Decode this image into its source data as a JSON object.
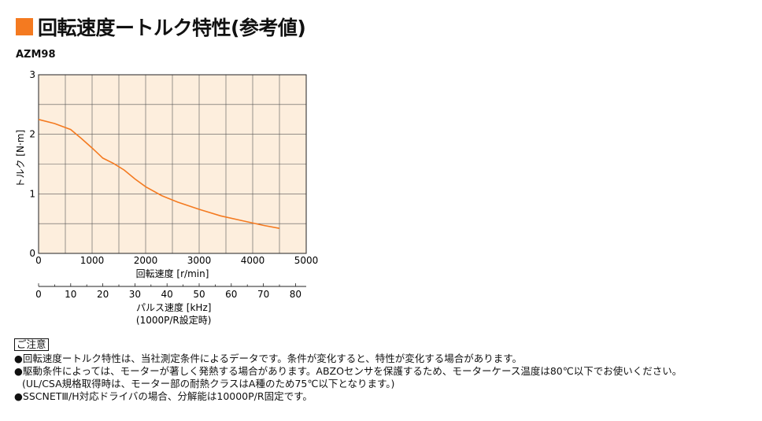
{
  "header": {
    "title": "回転速度ートルク特性(参考値)",
    "model": "AZM98",
    "accent_color": "#f47a20"
  },
  "chart_data": {
    "type": "line",
    "x": [
      0,
      300,
      600,
      800,
      1000,
      1200,
      1400,
      1600,
      1800,
      2000,
      2300,
      2600,
      3000,
      3400,
      3800,
      4200,
      4500
    ],
    "series": [
      {
        "values": [
          2.25,
          2.18,
          2.08,
          1.93,
          1.77,
          1.6,
          1.51,
          1.4,
          1.25,
          1.12,
          0.97,
          0.86,
          0.74,
          0.63,
          0.55,
          0.47,
          0.42
        ]
      }
    ],
    "xlim": [
      0,
      5000
    ],
    "ylim": [
      0,
      3
    ],
    "xticks": [
      "0",
      "1000",
      "2000",
      "3000",
      "4000",
      "5000"
    ],
    "yticks": [
      "0",
      "1",
      "2",
      "3"
    ],
    "xlabel": "回転速度 [r/min]",
    "ylabel": "トルク [N·m]",
    "secondary_axis": {
      "ticks": [
        "0",
        "10",
        "20",
        "30",
        "40",
        "50",
        "60",
        "70",
        "80"
      ],
      "tick_values": [
        0,
        10,
        20,
        30,
        40,
        50,
        60,
        70,
        80
      ],
      "max_value": 83.333,
      "label": "パルス速度 [kHz]",
      "sublabel": "(1000P/R設定時)"
    },
    "grid": true,
    "line_color": "#f47a20",
    "plot_background": "#fdeedd"
  },
  "notes": {
    "heading": "ご注意",
    "lines": [
      "●回転速度ートルク特性は、当社測定条件によるデータです。条件が変化すると、特性が変化する場合があります。",
      "●駆動条件によっては、モーターが著しく発熱する場合があります。ABZOセンサを保護するため、モーターケース温度は80℃以下でお使いください。",
      "(UL/CSA規格取得時は、モーター部の耐熱クラスはA種のため75℃以下となります。)",
      "●SSCNETⅢ/H対応ドライバの場合、分解能は10000P/R固定です。"
    ]
  }
}
